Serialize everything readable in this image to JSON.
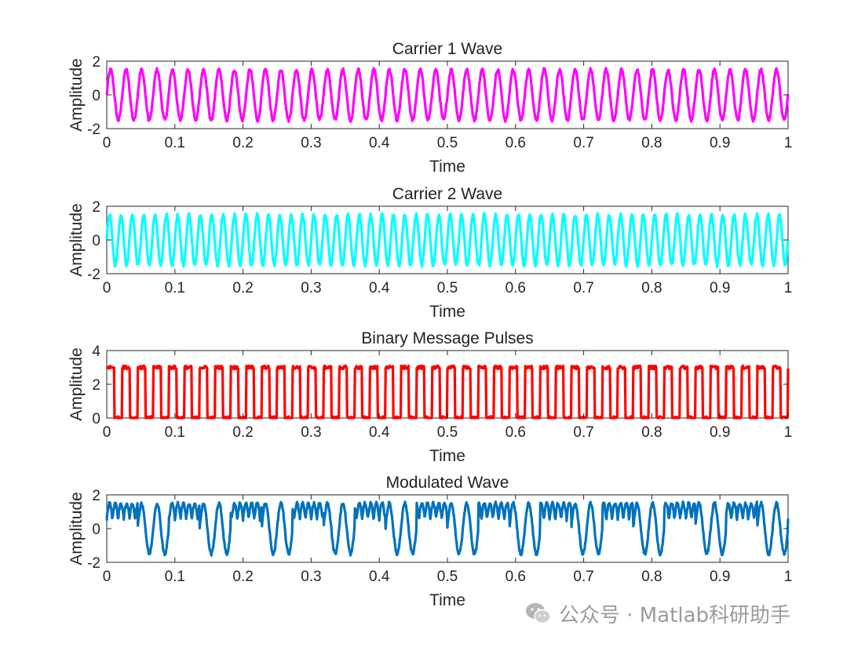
{
  "watermark": {
    "text": "公众号 · Matlab科研助手",
    "icon": "wechat-icon"
  },
  "chart_data": [
    {
      "type": "line",
      "title": "Carrier 1 Wave",
      "xlabel": "Time",
      "ylabel": "Amplitude",
      "xlim": [
        0,
        1
      ],
      "ylim": [
        -2,
        2
      ],
      "xticks": [
        "0",
        "0.1",
        "0.2",
        "0.3",
        "0.4",
        "0.5",
        "0.6",
        "0.7",
        "0.8",
        "0.9",
        "1"
      ],
      "yticks": [
        "-2",
        "0",
        "2"
      ],
      "color": "#ff00ff",
      "series": [
        {
          "signal": "sine",
          "amplitude": 1.5,
          "frequency_cycles": 44,
          "noise": 0.1
        }
      ]
    },
    {
      "type": "line",
      "title": "Carrier 2 Wave",
      "xlabel": "Time",
      "ylabel": "Amplitude",
      "xlim": [
        0,
        1
      ],
      "ylim": [
        -2,
        2
      ],
      "xticks": [
        "0",
        "0.1",
        "0.2",
        "0.3",
        "0.4",
        "0.5",
        "0.6",
        "0.7",
        "0.8",
        "0.9",
        "1"
      ],
      "yticks": [
        "-2",
        "0",
        "2"
      ],
      "color": "#00ffff",
      "series": [
        {
          "signal": "sine",
          "amplitude": 1.5,
          "frequency_cycles": 60,
          "noise": 0.1
        }
      ]
    },
    {
      "type": "line",
      "title": "Binary Message Pulses",
      "xlabel": "Time",
      "ylabel": "Amplitude",
      "xlim": [
        0,
        1
      ],
      "ylim": [
        0,
        4
      ],
      "xticks": [
        "0",
        "0.1",
        "0.2",
        "0.3",
        "0.4",
        "0.5",
        "0.6",
        "0.7",
        "0.8",
        "0.9",
        "1"
      ],
      "yticks": [
        "0",
        "2",
        "4"
      ],
      "color": "#ff0000",
      "series": [
        {
          "signal": "square",
          "low": 0,
          "high": 3,
          "frequency_cycles": 44,
          "noise": 0.1
        }
      ]
    },
    {
      "type": "line",
      "title": "Modulated Wave",
      "xlabel": "Time",
      "ylabel": "Amplitude",
      "xlim": [
        0,
        1
      ],
      "ylim": [
        -2,
        2
      ],
      "xticks": [
        "0",
        "0.1",
        "0.2",
        "0.3",
        "0.4",
        "0.5",
        "0.6",
        "0.7",
        "0.8",
        "0.9",
        "1"
      ],
      "yticks": [
        "-2",
        "0",
        "2"
      ],
      "color": "#0072bd",
      "series": [
        {
          "signal": "fsk",
          "amplitude": 1.5,
          "noise": 0.1
        }
      ]
    }
  ]
}
